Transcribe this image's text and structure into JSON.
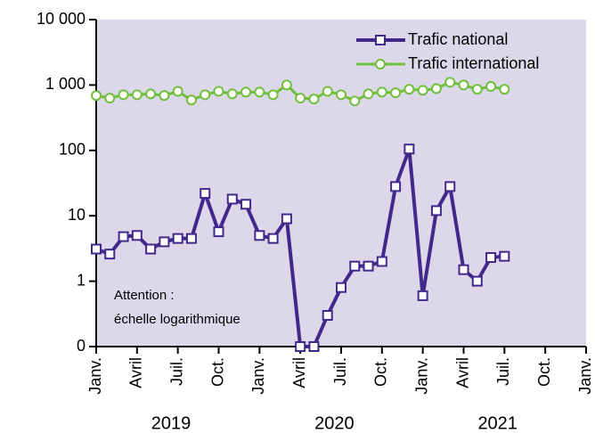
{
  "chart_data": {
    "type": "line",
    "x": [
      "2019-01",
      "2019-02",
      "2019-03",
      "2019-04",
      "2019-05",
      "2019-06",
      "2019-07",
      "2019-08",
      "2019-09",
      "2019-10",
      "2019-11",
      "2019-12",
      "2020-01",
      "2020-02",
      "2020-03",
      "2020-04",
      "2020-05",
      "2020-06",
      "2020-07",
      "2020-08",
      "2020-09",
      "2020-10",
      "2020-11",
      "2020-12",
      "2021-01",
      "2021-02",
      "2021-03",
      "2021-04",
      "2021-05",
      "2021-06",
      "2021-07"
    ],
    "series": [
      {
        "name": "Trafic national",
        "color": "#3f2a8c",
        "marker": "square",
        "values": [
          3.1,
          2.6,
          4.8,
          5,
          3.1,
          4,
          4.5,
          4.5,
          22,
          5.7,
          18,
          15,
          5,
          4.5,
          9,
          0.1,
          0.1,
          0.3,
          0.8,
          1.7,
          1.7,
          2,
          28,
          105,
          0.6,
          12,
          28,
          1.5,
          1,
          2.3,
          2.4
        ]
      },
      {
        "name": "Trafic international",
        "color": "#6fbf3a",
        "marker": "circle",
        "values": [
          690,
          630,
          710,
          710,
          730,
          690,
          800,
          590,
          710,
          800,
          730,
          780,
          780,
          710,
          1000,
          630,
          610,
          800,
          710,
          570,
          730,
          780,
          760,
          860,
          830,
          880,
          1100,
          1000,
          860,
          950,
          860
        ]
      }
    ],
    "log_scale": true,
    "ylim": [
      0.1,
      10000
    ],
    "yticks": [
      {
        "value": 0.1,
        "label": "0"
      },
      1,
      10,
      100,
      {
        "value": 1000,
        "label": "1 000"
      },
      {
        "value": 10000,
        "label": "10 000"
      }
    ],
    "xlim": [
      "2019-01",
      "2022-01"
    ],
    "xticks": [
      {
        "value": "2019-01",
        "label": "Janv."
      },
      {
        "value": "2019-04",
        "label": "Avril"
      },
      {
        "value": "2019-07",
        "label": "Juil."
      },
      {
        "value": "2019-10",
        "label": "Oct."
      },
      {
        "value": "2020-01",
        "label": "Janv."
      },
      {
        "value": "2020-04",
        "label": "Avril"
      },
      {
        "value": "2020-07",
        "label": "Juil."
      },
      {
        "value": "2020-10",
        "label": "Oct."
      },
      {
        "value": "2021-01",
        "label": "Janv."
      },
      {
        "value": "2021-04",
        "label": "Avril"
      },
      {
        "value": "2021-07",
        "label": "Juil."
      },
      {
        "value": "2021-10",
        "label": "Oct."
      },
      {
        "value": "2022-01",
        "label": "Janv."
      }
    ],
    "year_labels": [
      "2019",
      "2020",
      "2021"
    ],
    "annotation": [
      "Attention :",
      "échelle logarithmique"
    ],
    "legend": "upper right",
    "background": "#dcd8ea"
  }
}
